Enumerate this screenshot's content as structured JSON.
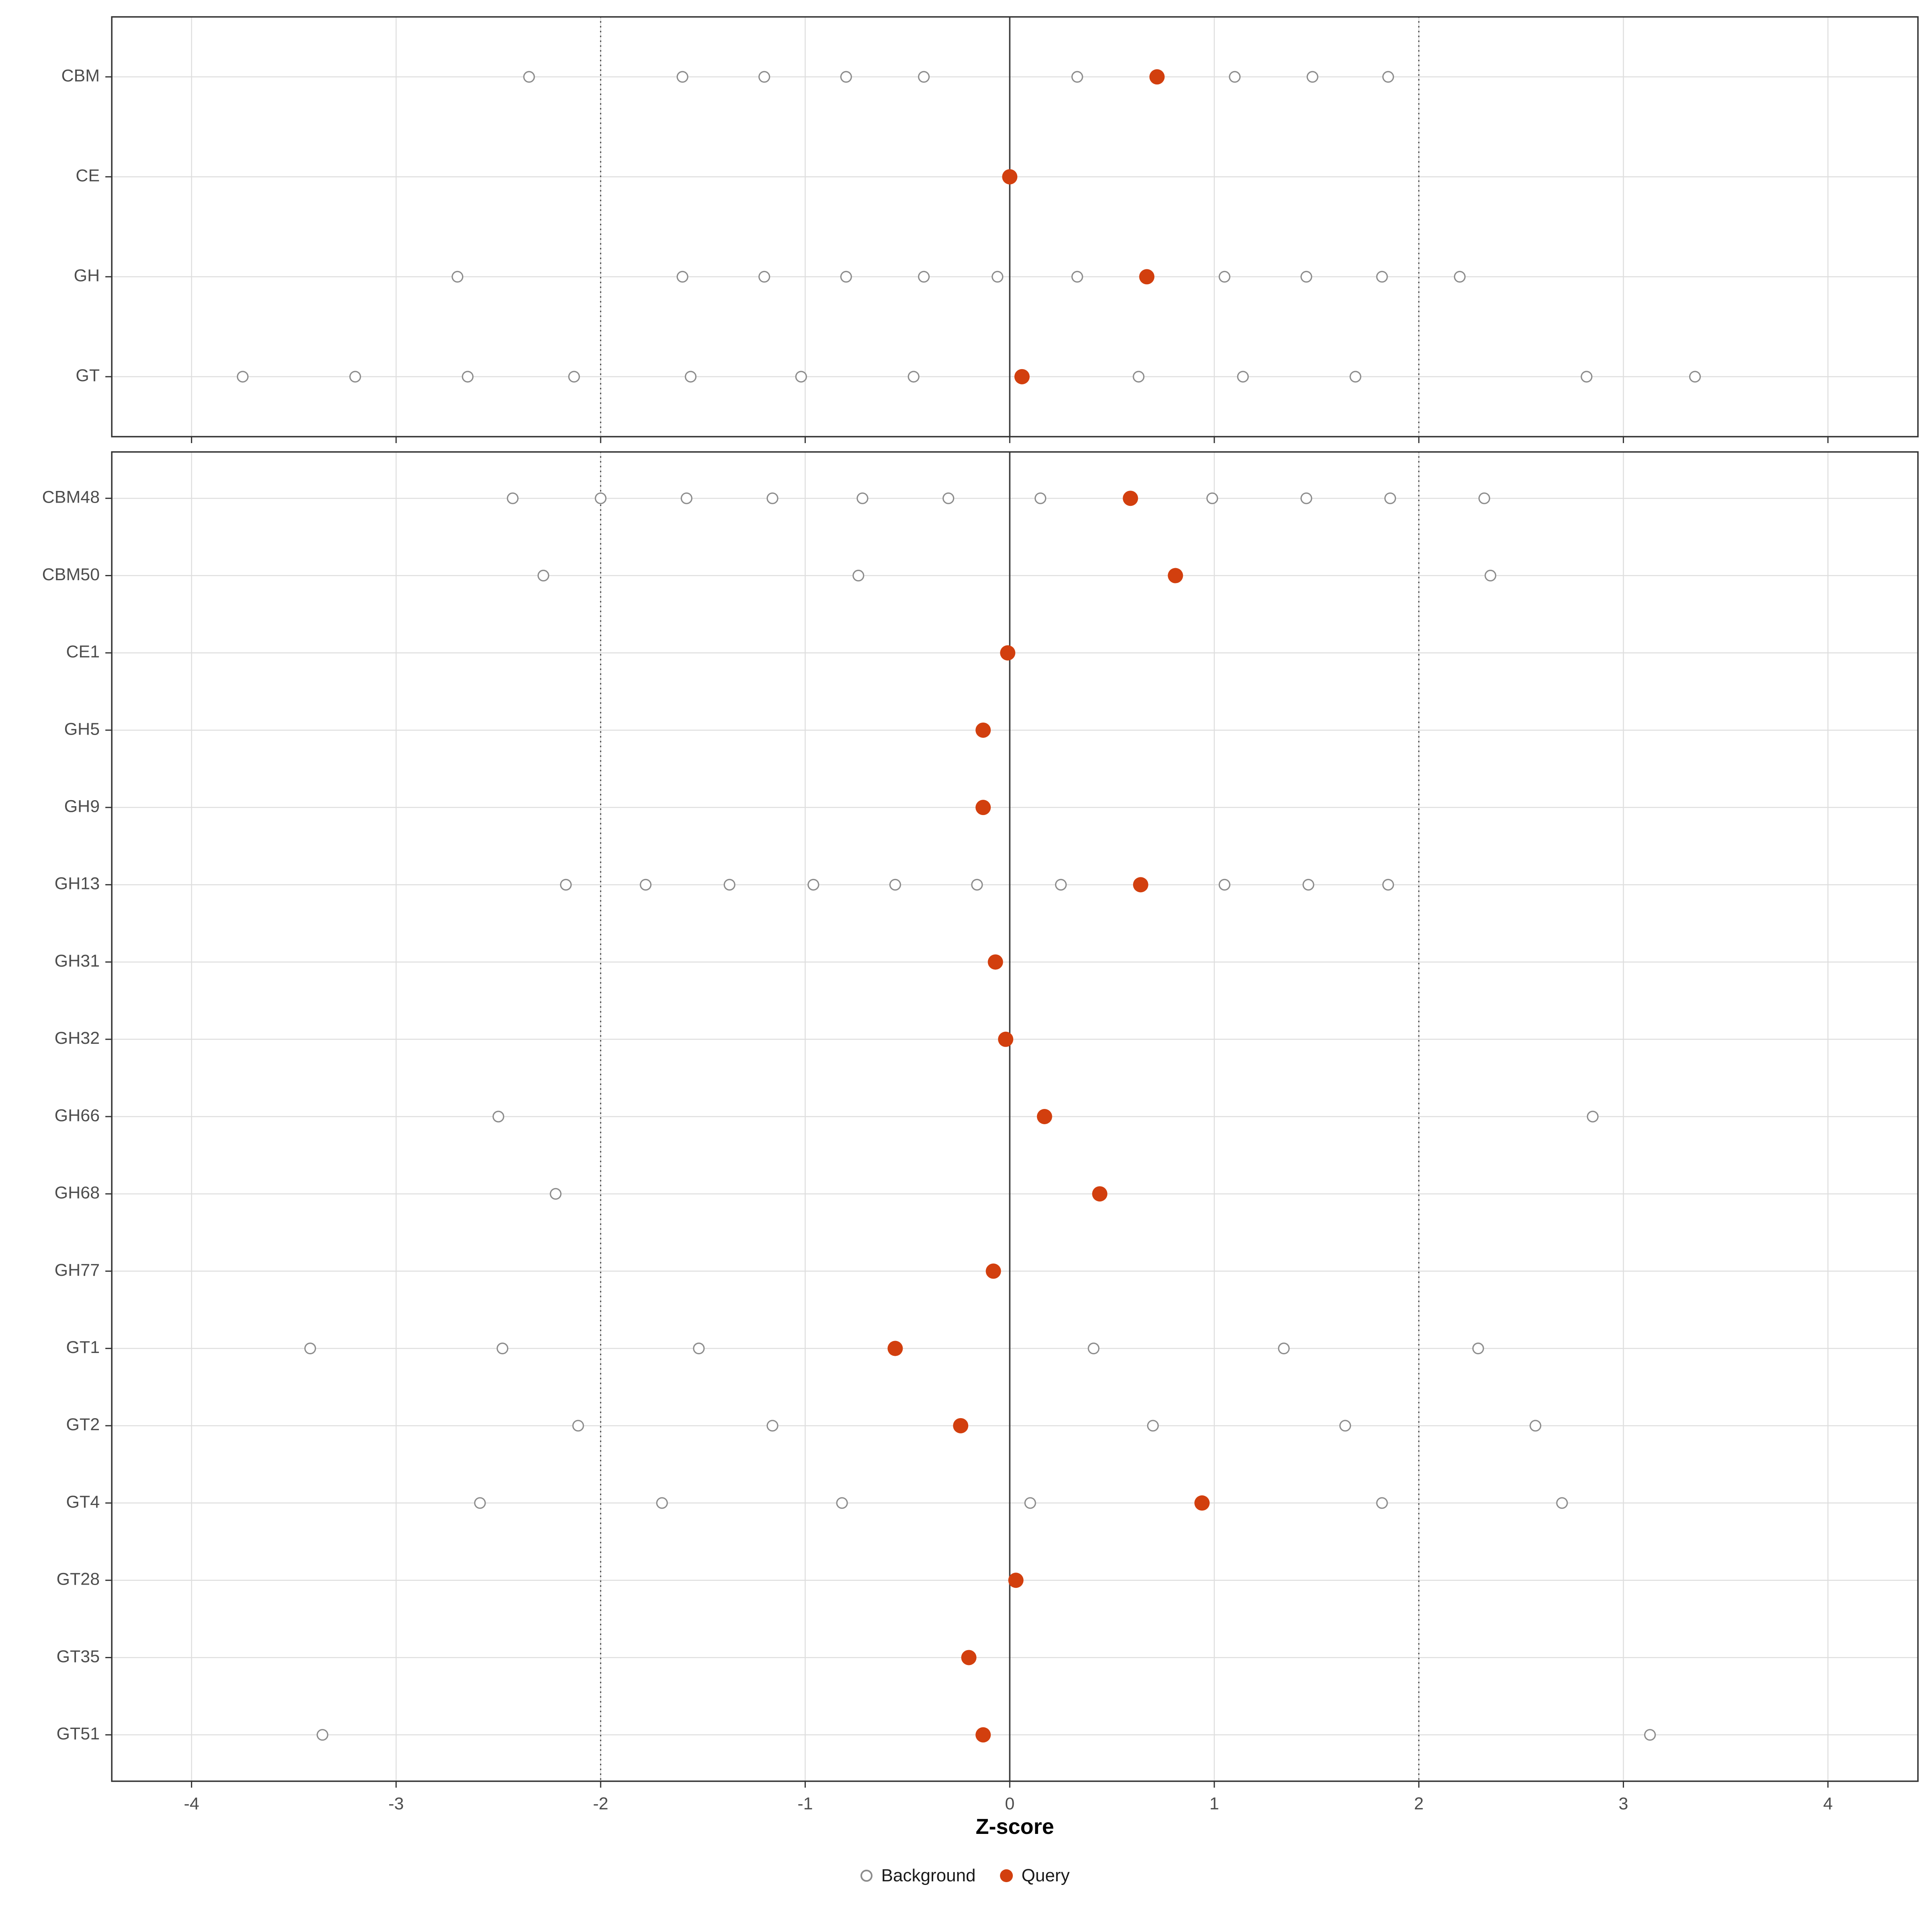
{
  "chart_data": {
    "type": "scatter",
    "title": "",
    "xlabel": "Z-score",
    "ylabel": "",
    "xlim": [
      -4.39,
      4.44
    ],
    "x_ticks": [
      -4,
      -3,
      -2,
      -1,
      0,
      1,
      2,
      3,
      4
    ],
    "grid": true,
    "reference_lines": {
      "solid_zero": 0,
      "dotted": [
        -2,
        2
      ]
    },
    "colors": {
      "query": "#d23f0e",
      "background_stroke": "#8c8c8c",
      "grid": "#dedede",
      "border": "#333333",
      "axis_text": "#4d4d4d",
      "ref_line": "#3a3a3a"
    },
    "legend": [
      {
        "label": "Background",
        "marker": "open-circle"
      },
      {
        "label": "Query",
        "marker": "filled-circle"
      }
    ],
    "panels": [
      {
        "rows": [
          {
            "label": "CBM",
            "background": [
              -2.35,
              -1.6,
              -1.2,
              -0.8,
              -0.42,
              0.33,
              1.1,
              1.48,
              1.85
            ],
            "query": 0.72
          },
          {
            "label": "CE",
            "background": [],
            "query": 0.0
          },
          {
            "label": "GH",
            "background": [
              -2.7,
              -1.6,
              -1.2,
              -0.8,
              -0.42,
              -0.06,
              0.33,
              1.05,
              1.45,
              1.82,
              2.2
            ],
            "query": 0.67
          },
          {
            "label": "GT",
            "background": [
              -3.75,
              -3.2,
              -2.65,
              -2.13,
              -1.56,
              -1.02,
              -0.47,
              0.63,
              1.14,
              1.69,
              2.82,
              3.35
            ],
            "query": 0.06
          }
        ]
      },
      {
        "rows": [
          {
            "label": "CBM48",
            "background": [
              -2.43,
              -2.0,
              -1.58,
              -1.16,
              -0.72,
              -0.3,
              0.15,
              0.99,
              1.45,
              1.86,
              2.32
            ],
            "query": 0.59
          },
          {
            "label": "CBM50",
            "background": [
              -2.28,
              -0.74,
              2.35
            ],
            "query": 0.81
          },
          {
            "label": "CE1",
            "background": [],
            "query": -0.01
          },
          {
            "label": "GH5",
            "background": [],
            "query": -0.13
          },
          {
            "label": "GH9",
            "background": [],
            "query": -0.13
          },
          {
            "label": "GH13",
            "background": [
              -2.17,
              -1.78,
              -1.37,
              -0.96,
              -0.56,
              -0.16,
              0.25,
              1.05,
              1.46,
              1.85
            ],
            "query": 0.64
          },
          {
            "label": "GH31",
            "background": [],
            "query": -0.07
          },
          {
            "label": "GH32",
            "background": [],
            "query": -0.02
          },
          {
            "label": "GH66",
            "background": [
              -2.5,
              2.85
            ],
            "query": 0.17
          },
          {
            "label": "GH68",
            "background": [
              -2.22
            ],
            "query": 0.44
          },
          {
            "label": "GH77",
            "background": [],
            "query": -0.08
          },
          {
            "label": "GT1",
            "background": [
              -3.42,
              -2.48,
              -1.52,
              0.41,
              1.34,
              2.29
            ],
            "query": -0.56
          },
          {
            "label": "GT2",
            "background": [
              -2.11,
              -1.16,
              0.7,
              1.64,
              2.57
            ],
            "query": -0.24
          },
          {
            "label": "GT4",
            "background": [
              -2.59,
              -1.7,
              -0.82,
              0.1,
              1.82,
              2.7
            ],
            "query": 0.94
          },
          {
            "label": "GT28",
            "background": [],
            "query": 0.03
          },
          {
            "label": "GT35",
            "background": [],
            "query": -0.2
          },
          {
            "label": "GT51",
            "background": [
              -3.36,
              3.13
            ],
            "query": -0.13
          }
        ]
      }
    ]
  }
}
